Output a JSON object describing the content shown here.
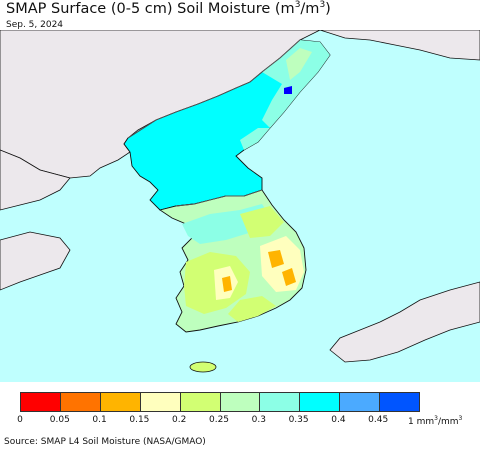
{
  "header": {
    "title_prefix": "SMAP Surface (0-5 cm) Soil Moisture (m",
    "title_sup1": "3",
    "title_mid": "/m",
    "title_sup2": "3",
    "title_suffix": ")",
    "date": "Sep. 5, 2024"
  },
  "map": {
    "colors": {
      "sea": "#bffffe",
      "land_nodata": "#ece8ec",
      "coast": "#111111",
      "border": "#555555"
    }
  },
  "legend": {
    "colors": [
      "#ff0000",
      "#ff7300",
      "#ffb400",
      "#ffffbe",
      "#d2ff73",
      "#beffbe",
      "#8cffe6",
      "#00ffff",
      "#4baaff",
      "#0055ff",
      "#0000ff"
    ],
    "ticks": [
      "0",
      "0.05",
      "0.1",
      "0.15",
      "0.2",
      "0.25",
      "0.3",
      "0.35",
      "0.4",
      "0.45"
    ],
    "unit_prefix": "1 mm",
    "unit_sup1": "3",
    "unit_mid": "/mm",
    "unit_sup2": "3"
  },
  "footer": {
    "source": "Source: SMAP L4 Soil Moisture (NASA/GMAO)"
  }
}
